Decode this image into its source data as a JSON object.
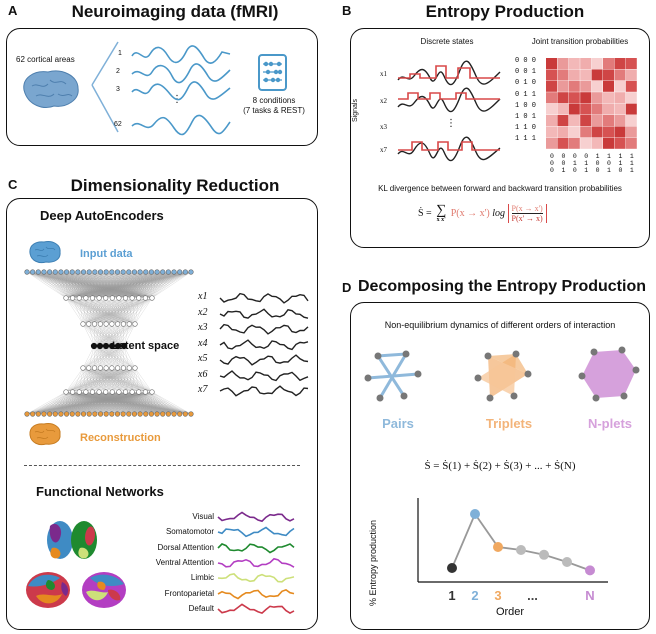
{
  "panelA": {
    "letter": "A",
    "title": "Neuroimaging data (fMRI)",
    "areas_label": "62 cortical areas",
    "row_labels": [
      "1",
      "2",
      "3",
      "62"
    ],
    "dots": "⋮",
    "conditions_line1": "8 conditions",
    "conditions_line2": "(7 tasks & REST)"
  },
  "panelB": {
    "letter": "B",
    "title": "Entropy Production",
    "discrete_title": "Discrete states",
    "joint_title": "Joint transition probabilities",
    "signals_label": "Signals",
    "signal_labels": [
      "x1",
      "x2",
      "x3",
      "x7"
    ],
    "binary_states": [
      "0 0 0",
      "0 0 1",
      "0 1 0",
      "0 1 1",
      "1 0 0",
      "1 0 1",
      "1 1 0",
      "1 1 1"
    ],
    "kl_caption": "KL divergence between forward and backward transition probabilities",
    "formula": {
      "lhs": "Ṡ =",
      "sum": "∑",
      "sum_sub": "x x'",
      "p_forward": "P(x → x')",
      "log": "log",
      "frac_num": "P(x → x')",
      "frac_den": "P(x' → x)"
    }
  },
  "panelC": {
    "letter": "C",
    "title": "Dimensionality Reduction",
    "ae_title": "Deep AutoEncoders",
    "input_label": "Input data",
    "latent_label": "Latent space",
    "recon_label": "Reconstruction",
    "latent_vars": [
      "x1",
      "x2",
      "x3",
      "x4",
      "x5",
      "x6",
      "x7"
    ],
    "fn_title": "Functional Networks",
    "networks": [
      "Visual",
      "Somatomotor",
      "Dorsal Attention",
      "Ventral Attention",
      "Limbic",
      "Frontoparietal",
      "Default"
    ],
    "network_colors": [
      "#7b2a8c",
      "#3f8bc4",
      "#1f8a2f",
      "#b33ec2",
      "#cde07a",
      "#e58a1f",
      "#cc3a4b"
    ]
  },
  "panelD": {
    "letter": "D",
    "title": "Decomposing the Entropy Production",
    "subtitle": "Non-equilibrium dynamics of different orders of interaction",
    "graph_labels": [
      "Pairs",
      "Triplets",
      "N-plets"
    ],
    "graph_colors": [
      "#8fb9db",
      "#f3b47a",
      "#d6a1dc"
    ],
    "decomposition": "Ṡ = Ṡ(1) + Ṡ(2) + Ṡ(3) + ... + Ṡ(N)",
    "ylabel": "% Entropy production",
    "xlabel": "Order",
    "orders": [
      "1",
      "2",
      "3",
      "...",
      "N"
    ],
    "order_colors": [
      "#333333",
      "#7fb0d8",
      "#f0a860",
      "#444444",
      "#c68bd2"
    ]
  },
  "chart_data": {
    "type": "line",
    "x": [
      "1",
      "2",
      "3",
      "",
      "",
      "",
      "N"
    ],
    "series": [
      {
        "values": [
          0.1,
          1.0,
          0.45,
          0.4,
          0.32,
          0.2,
          0.06
        ]
      }
    ],
    "xlabel": "Order",
    "ylabel": "% Entropy production",
    "grid": false
  }
}
